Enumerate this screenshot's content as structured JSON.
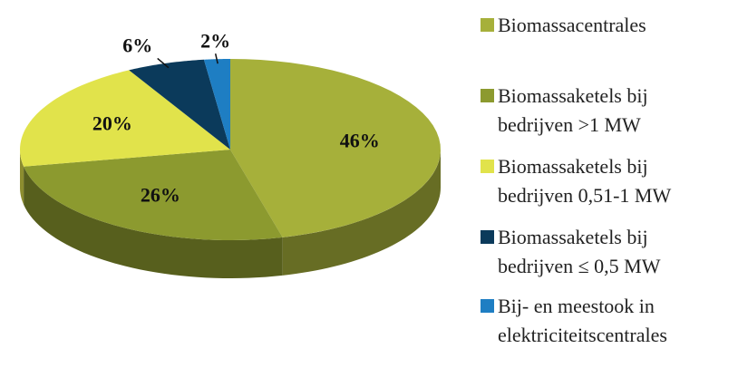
{
  "chart_data": {
    "type": "pie",
    "categories": [
      "Biomassacentrales",
      "Biomassaketels bij bedrijven >1 MW",
      "Biomassaketels bij bedrijven 0,51-1 MW",
      "Biomassaketels bij bedrijven ≤ 0,5 MW",
      "Bij- en meestook in elektriciteitscentrales"
    ],
    "values": [
      46,
      26,
      20,
      6,
      2
    ],
    "value_labels": [
      "46%",
      "26%",
      "20%",
      "6%",
      "2%"
    ],
    "colors": [
      "#a6b03a",
      "#8c9a2f",
      "#e1e34b",
      "#0b3a5b",
      "#1e7ec3"
    ],
    "legend": "right"
  }
}
